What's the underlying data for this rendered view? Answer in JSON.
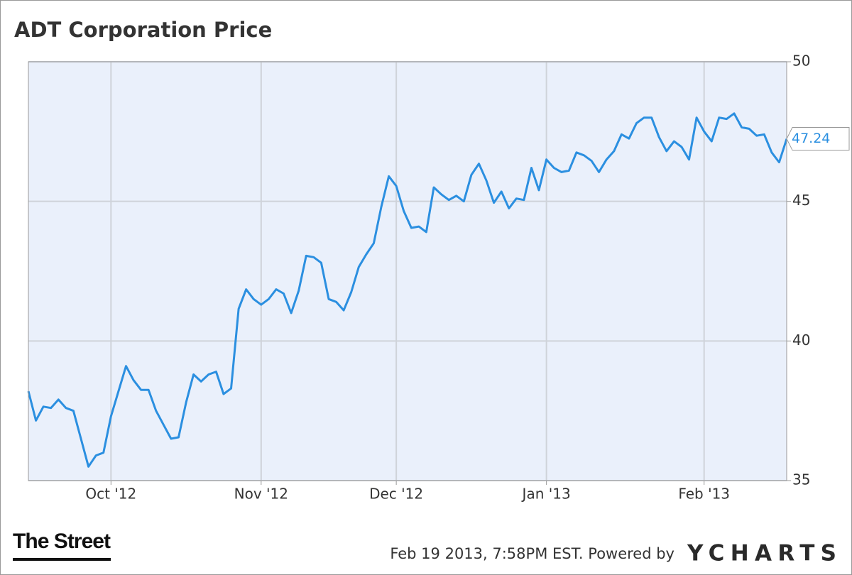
{
  "chart_data": {
    "type": "line",
    "title": "ADT Corporation Price",
    "footer": "Feb 19 2013, 7:58PM EST. Powered by",
    "logo_left": "The Street",
    "logo_right": "YCHARTS",
    "color": "#2b8fe0",
    "grid": true,
    "ylim": [
      35,
      50
    ],
    "yticks": [
      35,
      40,
      45,
      50
    ],
    "xlim": [
      0,
      101
    ],
    "xticks": [
      {
        "value": 11,
        "label": "Oct '12"
      },
      {
        "value": 31,
        "label": "Nov '12"
      },
      {
        "value": 49,
        "label": "Dec '12"
      },
      {
        "value": 69,
        "label": "Jan '13"
      },
      {
        "value": 90,
        "label": "Feb '13"
      }
    ],
    "values": [
      38.2,
      37.15,
      37.65,
      37.6,
      37.9,
      37.6,
      37.5,
      36.5,
      35.5,
      35.9,
      36.0,
      37.3,
      38.2,
      39.1,
      38.6,
      38.25,
      38.25,
      37.5,
      37.0,
      36.5,
      36.55,
      37.8,
      38.8,
      38.55,
      38.8,
      38.9,
      38.1,
      38.3,
      41.15,
      41.85,
      41.5,
      41.3,
      41.5,
      41.85,
      41.7,
      41.0,
      41.8,
      43.05,
      43.0,
      42.8,
      41.5,
      41.4,
      41.1,
      41.75,
      42.65,
      43.1,
      43.5,
      44.8,
      45.9,
      45.55,
      44.65,
      44.05,
      44.1,
      43.9,
      45.5,
      45.25,
      45.05,
      45.2,
      45.0,
      45.95,
      46.35,
      45.75,
      44.95,
      45.35,
      44.75,
      45.1,
      45.05,
      46.2,
      45.4,
      46.5,
      46.2,
      46.05,
      46.1,
      46.75,
      46.65,
      46.45,
      46.05,
      46.5,
      46.8,
      47.4,
      47.25,
      47.8,
      48.0,
      48.0,
      47.3,
      46.8,
      47.15,
      46.95,
      46.5,
      48.0,
      47.5,
      47.15,
      48.0,
      47.95,
      48.15,
      47.65,
      47.6,
      47.35,
      47.4,
      46.75,
      46.4,
      47.24
    ]
  }
}
